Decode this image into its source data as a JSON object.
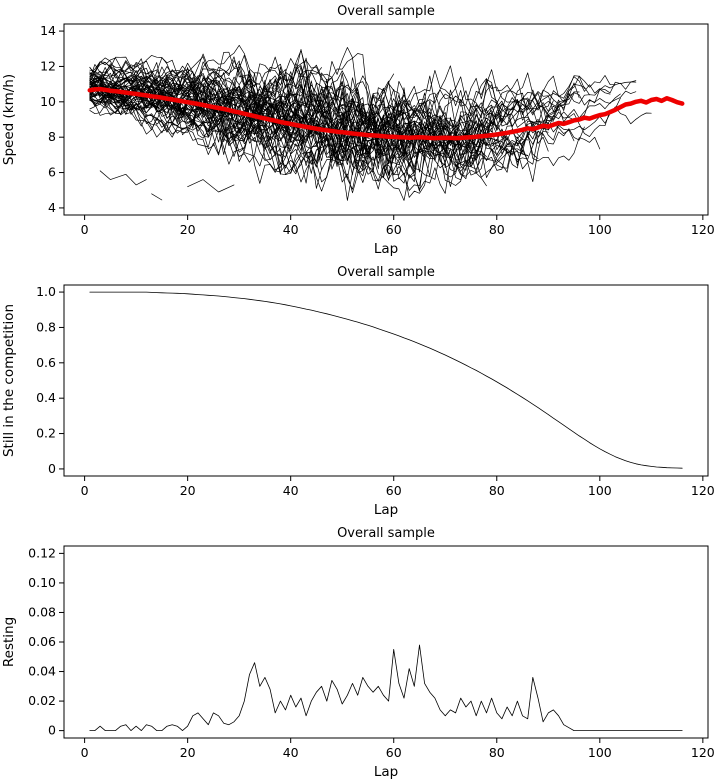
{
  "page": {
    "background": "#ffffff"
  },
  "chart_data": [
    {
      "type": "line",
      "title": "Overall sample",
      "xlabel": "Lap",
      "ylabel": "Speed (km/h)",
      "xlim": [
        -4,
        121
      ],
      "ylim": [
        3.6,
        14.4
      ],
      "xticks": [
        0,
        20,
        40,
        60,
        80,
        100,
        120
      ],
      "xtick_labels": [
        "0",
        "20",
        "40",
        "60",
        "80",
        "100",
        "120"
      ],
      "yticks": [
        4,
        6,
        8,
        10,
        12,
        14
      ],
      "ytick_labels": [
        "4",
        "6",
        "8",
        "10",
        "12",
        "14"
      ],
      "x_start_lap": 1,
      "grid": false,
      "legend": "none",
      "mean_series": {
        "name": "sample-mean-speed",
        "color": "#ee0000",
        "width": 4.5,
        "values": [
          10.65,
          10.7,
          10.72,
          10.68,
          10.63,
          10.6,
          10.56,
          10.52,
          10.48,
          10.45,
          10.4,
          10.36,
          10.31,
          10.28,
          10.23,
          10.18,
          10.13,
          10.08,
          10.03,
          9.98,
          9.93,
          9.88,
          9.82,
          9.76,
          9.7,
          9.65,
          9.6,
          9.53,
          9.46,
          9.4,
          9.33,
          9.26,
          9.19,
          9.12,
          9.06,
          8.99,
          8.93,
          8.86,
          8.8,
          8.75,
          8.69,
          8.63,
          8.58,
          8.53,
          8.48,
          8.43,
          8.39,
          8.35,
          8.31,
          8.28,
          8.24,
          8.21,
          8.18,
          8.15,
          8.12,
          8.1,
          8.08,
          8.05,
          8.03,
          8.02,
          8.0,
          7.99,
          7.97,
          7.98,
          8.0,
          7.98,
          7.96,
          7.95,
          7.96,
          7.97,
          7.96,
          7.95,
          7.96,
          7.98,
          8.0,
          8.02,
          8.05,
          8.08,
          8.12,
          8.15,
          8.2,
          8.25,
          8.3,
          8.36,
          8.42,
          8.5,
          8.45,
          8.55,
          8.65,
          8.6,
          8.7,
          8.8,
          8.75,
          8.85,
          8.95,
          9.0,
          9.1,
          9.05,
          9.15,
          9.25,
          9.3,
          9.42,
          9.55,
          9.7,
          9.85,
          9.9,
          10.0,
          10.06,
          9.96,
          10.1,
          10.16,
          10.05,
          10.2,
          10.1,
          9.98,
          9.9
        ]
      },
      "individual_runs": {
        "count": 62,
        "seed": 11,
        "color": "#000000",
        "width": 0.7,
        "note": "individual runner speed traces forming the black spaghetti cloud"
      },
      "extra_segments": [
        [
          [
            3,
            6.1
          ],
          [
            5,
            5.6
          ],
          [
            8,
            5.9
          ],
          [
            10,
            5.3
          ],
          [
            12,
            5.6
          ]
        ],
        [
          [
            20,
            5.2
          ],
          [
            23,
            5.6
          ],
          [
            26,
            4.9
          ],
          [
            29,
            5.3
          ]
        ],
        [
          [
            13,
            4.8
          ],
          [
            15,
            4.45
          ]
        ]
      ]
    },
    {
      "type": "line",
      "title": "Overall sample",
      "xlabel": "Lap",
      "ylabel": "Still in the competition",
      "xlim": [
        -4,
        121
      ],
      "ylim": [
        -0.04,
        1.04
      ],
      "xticks": [
        0,
        20,
        40,
        60,
        80,
        100,
        120
      ],
      "xtick_labels": [
        "0",
        "20",
        "40",
        "60",
        "80",
        "100",
        "120"
      ],
      "yticks": [
        0,
        0.2,
        0.4,
        0.6,
        0.8,
        1.0
      ],
      "ytick_labels": [
        "0",
        "0.2",
        "0.4",
        "0.6",
        "0.8",
        "1.0"
      ],
      "x_start_lap": 1,
      "grid": false,
      "legend": "none",
      "series": [
        {
          "name": "proportion-still-in-competition",
          "color": "#000000",
          "width": 0.8,
          "values": [
            1,
            1,
            1,
            1,
            1,
            1,
            1,
            1,
            1,
            1,
            1,
            1,
            0.998,
            0.997,
            0.996,
            0.995,
            0.994,
            0.993,
            0.992,
            0.99,
            0.988,
            0.986,
            0.984,
            0.982,
            0.98,
            0.978,
            0.975,
            0.972,
            0.969,
            0.966,
            0.963,
            0.959,
            0.955,
            0.951,
            0.947,
            0.943,
            0.938,
            0.933,
            0.928,
            0.922,
            0.916,
            0.91,
            0.904,
            0.898,
            0.891,
            0.884,
            0.877,
            0.87,
            0.862,
            0.854,
            0.846,
            0.838,
            0.83,
            0.821,
            0.812,
            0.803,
            0.793,
            0.783,
            0.773,
            0.763,
            0.752,
            0.741,
            0.73,
            0.719,
            0.707,
            0.695,
            0.683,
            0.67,
            0.657,
            0.644,
            0.63,
            0.616,
            0.602,
            0.587,
            0.572,
            0.557,
            0.541,
            0.525,
            0.509,
            0.492,
            0.475,
            0.458,
            0.44,
            0.422,
            0.404,
            0.385,
            0.366,
            0.347,
            0.327,
            0.307,
            0.287,
            0.267,
            0.247,
            0.227,
            0.207,
            0.187,
            0.168,
            0.149,
            0.131,
            0.114,
            0.098,
            0.083,
            0.069,
            0.057,
            0.046,
            0.037,
            0.029,
            0.023,
            0.018,
            0.014,
            0.011,
            0.009,
            0.007,
            0.006,
            0.005,
            0.004
          ]
        }
      ]
    },
    {
      "type": "line",
      "title": "Overall sample",
      "xlabel": "Lap",
      "ylabel": "Resting",
      "xlim": [
        -4,
        121
      ],
      "ylim": [
        -0.005,
        0.125
      ],
      "xticks": [
        0,
        20,
        40,
        60,
        80,
        100,
        120
      ],
      "xtick_labels": [
        "0",
        "20",
        "40",
        "60",
        "80",
        "100",
        "120"
      ],
      "yticks": [
        0,
        0.02,
        0.04,
        0.06,
        0.08,
        0.1,
        0.12
      ],
      "ytick_labels": [
        "0",
        "0.02",
        "0.04",
        "0.06",
        "0.08",
        "0.10",
        "0.12"
      ],
      "x_start_lap": 1,
      "grid": false,
      "legend": "none",
      "series": [
        {
          "name": "resting-proportion",
          "color": "#000000",
          "width": 0.8,
          "values": [
            0,
            0,
            0.003,
            0,
            0,
            0,
            0.003,
            0.004,
            0,
            0.003,
            0,
            0.004,
            0.003,
            0,
            0,
            0.003,
            0.004,
            0.003,
            0,
            0.003,
            0.01,
            0.012,
            0.008,
            0.004,
            0.012,
            0.01,
            0.005,
            0.004,
            0.006,
            0.01,
            0.02,
            0.038,
            0.046,
            0.03,
            0.036,
            0.028,
            0.012,
            0.02,
            0.014,
            0.024,
            0.016,
            0.022,
            0.01,
            0.02,
            0.026,
            0.03,
            0.02,
            0.034,
            0.028,
            0.018,
            0.024,
            0.032,
            0.024,
            0.036,
            0.03,
            0.026,
            0.03,
            0.024,
            0.02,
            0.055,
            0.032,
            0.022,
            0.042,
            0.03,
            0.058,
            0.032,
            0.026,
            0.022,
            0.014,
            0.01,
            0.014,
            0.012,
            0.022,
            0.016,
            0.02,
            0.01,
            0.02,
            0.012,
            0.022,
            0.012,
            0.008,
            0.016,
            0.01,
            0.02,
            0.01,
            0.008,
            0.036,
            0.022,
            0.006,
            0.012,
            0.014,
            0.01,
            0.004,
            0.002,
            0,
            0,
            0,
            0,
            0,
            0,
            0,
            0,
            0,
            0,
            0,
            0,
            0,
            0,
            0,
            0,
            0,
            0,
            0,
            0,
            0,
            0
          ]
        }
      ]
    }
  ]
}
